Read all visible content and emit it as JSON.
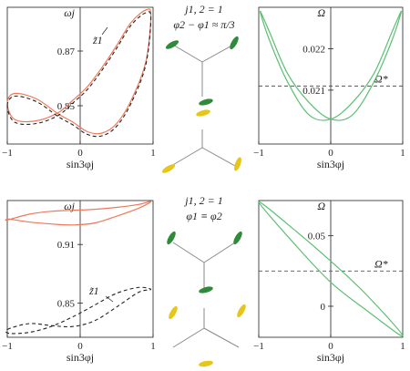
{
  "colors": {
    "orange": "#f0785a",
    "green": "#5cbf72",
    "black": "#222222",
    "gray": "#8a8a8a",
    "dark_green_blade": "#2e8b3a",
    "yellow_blade": "#e6c619"
  },
  "chart_data": [
    {
      "type": "line",
      "panel": "top-left",
      "ylabel": "ωj",
      "xlabel": "sin3φj",
      "xlim": [
        -1,
        1
      ],
      "ylim": [
        0.836,
        0.886
      ],
      "xticks": [
        "−1",
        "0",
        "1"
      ],
      "yticks": [
        "0.85",
        "0.87"
      ],
      "ytick_values": [
        0.85,
        0.87
      ],
      "annotation": "z̃1",
      "series": [
        {
          "style": "solid-orange",
          "x": [
            -1.0,
            -0.9,
            -0.6,
            -0.3,
            -0.1,
            0.1,
            0.3,
            0.5,
            0.7,
            0.9,
            0.97,
            0.9,
            0.7,
            0.5,
            0.3,
            0.1,
            -0.1,
            -0.3,
            -0.6,
            -0.9,
            -1.0
          ],
          "y": [
            0.851,
            0.8545,
            0.8525,
            0.847,
            0.844,
            0.8405,
            0.84,
            0.8435,
            0.852,
            0.866,
            0.883,
            0.885,
            0.8805,
            0.872,
            0.864,
            0.857,
            0.852,
            0.8475,
            0.8445,
            0.845,
            0.851
          ]
        },
        {
          "style": "dashed-black",
          "x": [
            -1.0,
            -0.9,
            -0.6,
            -0.3,
            -0.1,
            0.1,
            0.3,
            0.5,
            0.7,
            0.9,
            0.97,
            0.9,
            0.7,
            0.5,
            0.3,
            0.1,
            -0.1,
            -0.3,
            -0.6,
            -0.9,
            -1.0
          ],
          "y": [
            0.85,
            0.8535,
            0.8515,
            0.846,
            0.843,
            0.8395,
            0.839,
            0.8425,
            0.851,
            0.865,
            0.882,
            0.884,
            0.8795,
            0.871,
            0.863,
            0.856,
            0.851,
            0.8465,
            0.8435,
            0.844,
            0.85
          ]
        }
      ]
    },
    {
      "type": "line",
      "panel": "top-right",
      "ylabel": "Ω",
      "xlabel": "sin3φj",
      "xlim": [
        -1,
        1
      ],
      "ylim": [
        0.0197,
        0.023
      ],
      "xticks": [
        "−1",
        "0",
        "1"
      ],
      "yticks": [
        "0.021",
        "0.022"
      ],
      "ytick_values": [
        0.021,
        0.022
      ],
      "reference": {
        "label": "Ω*",
        "value": 0.0211
      },
      "series": [
        {
          "style": "solid-green",
          "x": [
            -0.98,
            -0.85,
            -0.6,
            -0.3,
            0.0,
            0.3,
            0.6,
            0.85,
            0.98,
            0.85,
            0.6,
            0.3,
            0.0,
            -0.3,
            -0.6,
            -0.85,
            -0.98
          ],
          "y": [
            0.0229,
            0.0222,
            0.0212,
            0.0204,
            0.0203,
            0.0207,
            0.0214,
            0.0224,
            0.0229,
            0.0222,
            0.0212,
            0.0204,
            0.0203,
            0.0207,
            0.0214,
            0.0224,
            0.0229
          ]
        }
      ]
    },
    {
      "type": "line",
      "panel": "bottom-left",
      "ylabel": "ωj",
      "xlabel": "sin3φj",
      "xlim": [
        -1,
        1
      ],
      "ylim": [
        0.815,
        0.955
      ],
      "xticks": [
        "−1",
        "0",
        "1"
      ],
      "yticks": [
        "0.85",
        "0.91"
      ],
      "ytick_values": [
        0.85,
        0.91
      ],
      "annotation": "z̃1",
      "series": [
        {
          "style": "solid-orange",
          "x": [
            -1.0,
            -0.7,
            -0.4,
            -0.1,
            0.2,
            0.5,
            0.8,
            0.97,
            0.8,
            0.5,
            0.2,
            -0.1,
            -0.4,
            -0.7,
            -0.97,
            -1.0
          ],
          "y": [
            0.935,
            0.941,
            0.944,
            0.945,
            0.946,
            0.948,
            0.951,
            0.954,
            0.947,
            0.939,
            0.932,
            0.93,
            0.931,
            0.933,
            0.936,
            0.935
          ]
        },
        {
          "style": "dashed-black",
          "x": [
            -1.0,
            -0.7,
            -0.4,
            -0.1,
            0.2,
            0.5,
            0.8,
            0.97,
            0.8,
            0.5,
            0.2,
            -0.1,
            -0.4,
            -0.7,
            -0.97,
            -1.0
          ],
          "y": [
            0.823,
            0.829,
            0.827,
            0.826,
            0.832,
            0.846,
            0.861,
            0.864,
            0.866,
            0.86,
            0.848,
            0.836,
            0.826,
            0.82,
            0.819,
            0.823
          ]
        }
      ]
    },
    {
      "type": "line",
      "panel": "bottom-right",
      "ylabel": "Ω",
      "xlabel": "sin3φj",
      "xlim": [
        -1,
        1
      ],
      "ylim": [
        -0.022,
        0.075
      ],
      "xticks": [
        "−1",
        "0",
        "1"
      ],
      "yticks": [
        "0",
        "0.05"
      ],
      "ytick_values": [
        0,
        0.05
      ],
      "reference": {
        "label": "Ω*",
        "value": 0.025
      },
      "series": [
        {
          "style": "solid-green",
          "x": [
            -1.0,
            -0.5,
            0.0,
            0.5,
            1.0,
            0.5,
            0.0,
            -0.5,
            -1.0
          ],
          "y": [
            0.074,
            0.044,
            0.017,
            -0.003,
            -0.021,
            0.008,
            0.032,
            0.054,
            0.074
          ]
        }
      ]
    }
  ],
  "middle": {
    "top_label_1": "j1, 2 = 1",
    "top_label_2": "φ2 − φ1 ≈ π/3",
    "bottom_label_1": "j1, 2 = 1",
    "bottom_label_2": "φ1 ≡ φ2"
  }
}
